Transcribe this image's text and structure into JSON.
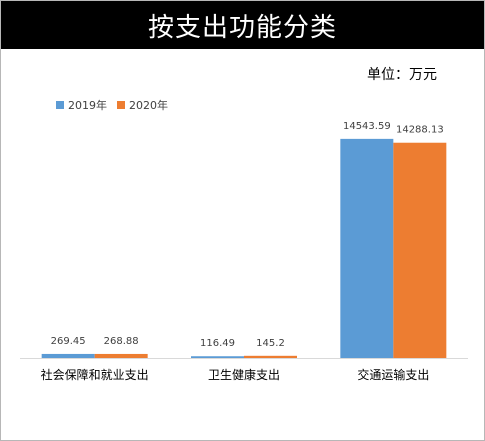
{
  "title": "按支出功能分类",
  "unit_label": "单位：万元",
  "colors": {
    "series_2019": "#5b9bd5",
    "series_2020": "#ed7d31"
  },
  "chart_data": {
    "type": "bar",
    "title": "按支出功能分类",
    "xlabel": "",
    "ylabel": "",
    "grid": false,
    "legend_position": "top-left",
    "categories": [
      "社会保障和就业支出",
      "卫生健康支出",
      "交通运输支出"
    ],
    "series": [
      {
        "name": "2019年",
        "values": [
          269.45,
          116.49,
          14543.59
        ],
        "labels": [
          "269.45",
          "116.49",
          "14543.59"
        ]
      },
      {
        "name": "2020年",
        "values": [
          268.88,
          145.2,
          14288.13
        ],
        "labels": [
          "268.88",
          "145.2",
          "14288.13"
        ]
      }
    ]
  }
}
